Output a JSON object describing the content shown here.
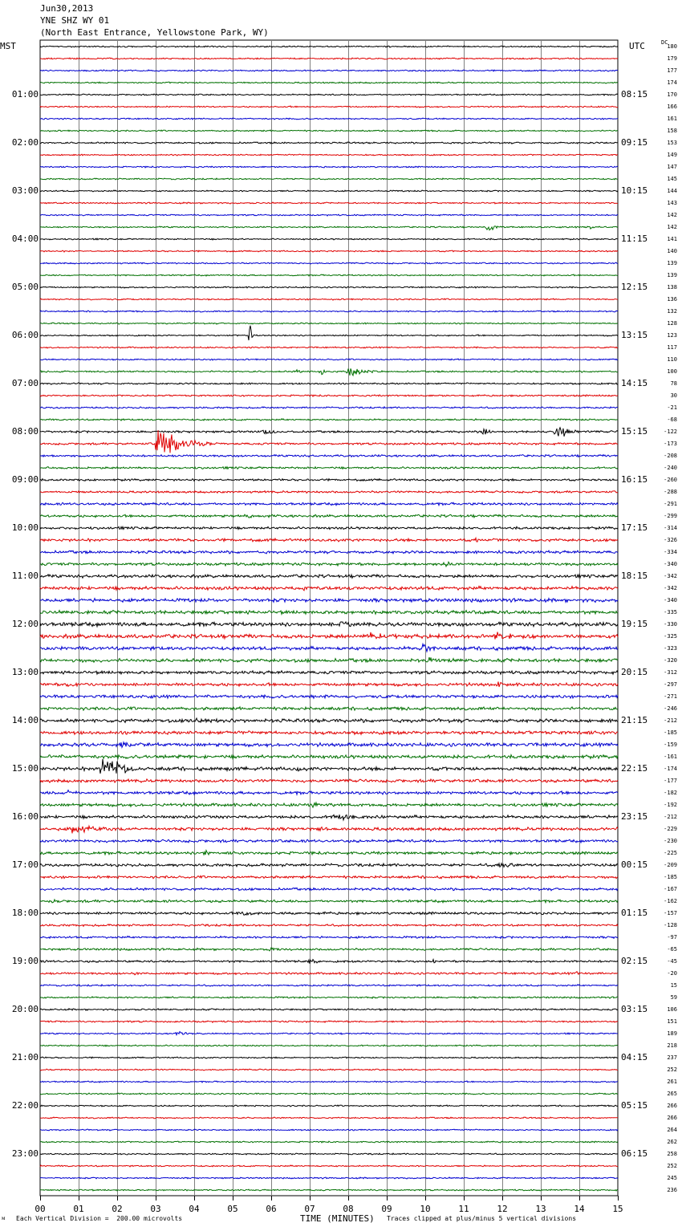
{
  "header": {
    "date": "Jun30,2013",
    "station": "YNE SHZ WY 01",
    "location": "(North East Entrance, Yellowstone Park, WY)"
  },
  "left_label": "MST",
  "right_label": "UTC",
  "dc_label": "DC",
  "footer": {
    "scale": "Each Vertical Division =  200.00 microvolts",
    "xlabel": "TIME (MINUTES)",
    "clip_note": "Traces clipped at plus/minus 5 vertical divisions"
  },
  "colors": {
    "trace": [
      "#000000",
      "#e00000",
      "#0000d0",
      "#007000"
    ],
    "grid": "#808080"
  },
  "chart_data": {
    "type": "line",
    "title": "YNE SHZ WY 01",
    "xlabel": "TIME (MINUTES)",
    "xlim": [
      0,
      15
    ],
    "x_ticks": [
      "00",
      "01",
      "02",
      "03",
      "04",
      "05",
      "06",
      "07",
      "08",
      "09",
      "10",
      "11",
      "12",
      "13",
      "14",
      "15"
    ],
    "traces_per_hour": 4,
    "trace_minutes": 15,
    "mst_hour_labels": [
      "",
      "01:00",
      "02:00",
      "03:00",
      "04:00",
      "05:00",
      "06:00",
      "07:00",
      "08:00",
      "09:00",
      "10:00",
      "11:00",
      "12:00",
      "13:00",
      "14:00",
      "15:00",
      "16:00",
      "17:00",
      "18:00",
      "19:00",
      "20:00",
      "21:00",
      "22:00",
      "23:00"
    ],
    "utc_hour_labels": [
      "",
      "08:15",
      "09:15",
      "10:15",
      "11:15",
      "12:15",
      "13:15",
      "14:15",
      "15:15",
      "16:15",
      "17:15",
      "18:15",
      "19:15",
      "20:15",
      "21:15",
      "22:15",
      "23:15",
      "00:15",
      "01:15",
      "02:15",
      "03:15",
      "04:15",
      "05:15",
      "06:15"
    ],
    "dc_offsets": [
      180,
      179,
      177,
      174,
      170,
      166,
      161,
      158,
      153,
      149,
      147,
      145,
      144,
      143,
      142,
      142,
      141,
      140,
      139,
      139,
      138,
      136,
      132,
      128,
      123,
      117,
      110,
      100,
      78,
      30,
      -21,
      -68,
      -122,
      -173,
      -208,
      -240,
      -260,
      -288,
      -291,
      -299,
      -314,
      -326,
      -334,
      -340,
      -342,
      -342,
      -340,
      -335,
      -330,
      -325,
      -323,
      -320,
      -312,
      -297,
      -271,
      -246,
      -212,
      -185,
      -159,
      -161,
      -174,
      -177,
      -182,
      -192,
      -212,
      -229,
      -230,
      -225,
      -209,
      -185,
      -167,
      -162,
      -157,
      -128,
      -97,
      -65,
      -45,
      -20,
      15,
      59,
      106,
      151,
      189,
      218,
      237,
      252,
      261,
      265,
      266,
      266,
      264,
      262,
      258,
      252,
      245,
      236
    ],
    "noise_amplitude": [
      1,
      1,
      1,
      1,
      1,
      1,
      1,
      1,
      1.2,
      1,
      1,
      1,
      1,
      1,
      1,
      1,
      1,
      1,
      1,
      1,
      1,
      1,
      1,
      1,
      1,
      1,
      1,
      1.2,
      1.2,
      1.2,
      1.2,
      1.2,
      1.5,
      1.5,
      1.5,
      1.5,
      1.5,
      1.5,
      1.8,
      1.8,
      1.8,
      2,
      2,
      2,
      2.2,
      2.5,
      2.5,
      2.5,
      2.8,
      2.8,
      2.5,
      2.5,
      2.2,
      2.2,
      2.2,
      2.2,
      2.5,
      2.5,
      2.5,
      2.5,
      2.5,
      2.2,
      2.2,
      2.2,
      2.2,
      2.2,
      2,
      2,
      2,
      1.8,
      1.8,
      1.8,
      1.8,
      1.5,
      1.5,
      1.5,
      1.5,
      1.5,
      1.2,
      1.2,
      1.2,
      1.2,
      1,
      1,
      1,
      1,
      1,
      1,
      1,
      1,
      1,
      1,
      1,
      1,
      1,
      1
    ],
    "events": [
      {
        "trace": 15,
        "minute": 11.6,
        "amplitude": 10,
        "duration": 0.6
      },
      {
        "trace": 15,
        "minute": 14.2,
        "amplitude": 4,
        "duration": 0.5
      },
      {
        "trace": 24,
        "minute": 5.45,
        "amplitude": 24,
        "duration": 0.12
      },
      {
        "trace": 27,
        "minute": 6.7,
        "amplitude": 6,
        "duration": 0.2
      },
      {
        "trace": 27,
        "minute": 7.3,
        "amplitude": 8,
        "duration": 0.2
      },
      {
        "trace": 27,
        "minute": 8.0,
        "amplitude": 10,
        "duration": 1.0
      },
      {
        "trace": 32,
        "minute": 5.8,
        "amplitude": 6,
        "duration": 0.8
      },
      {
        "trace": 32,
        "minute": 11.5,
        "amplitude": 6,
        "duration": 0.6
      },
      {
        "trace": 32,
        "minute": 13.4,
        "amplitude": 12,
        "duration": 0.9
      },
      {
        "trace": 33,
        "minute": 3.05,
        "amplitude": 26,
        "duration": 1.6
      },
      {
        "trace": 39,
        "minute": 5.3,
        "amplitude": 4,
        "duration": 0.8
      },
      {
        "trace": 41,
        "minute": 11.3,
        "amplitude": 4,
        "duration": 0.6
      },
      {
        "trace": 42,
        "minute": 11.8,
        "amplitude": 4,
        "duration": 0.8
      },
      {
        "trace": 43,
        "minute": 10.5,
        "amplitude": 5,
        "duration": 0.7
      },
      {
        "trace": 45,
        "minute": 6.8,
        "amplitude": 5,
        "duration": 0.6
      },
      {
        "trace": 47,
        "minute": 11.2,
        "amplitude": 6,
        "duration": 0.3
      },
      {
        "trace": 48,
        "minute": 7.8,
        "amplitude": 6,
        "duration": 1.6
      },
      {
        "trace": 49,
        "minute": 8.5,
        "amplitude": 7,
        "duration": 1.8
      },
      {
        "trace": 49,
        "minute": 11.8,
        "amplitude": 8,
        "duration": 1.9
      },
      {
        "trace": 50,
        "minute": 9.9,
        "amplitude": 12,
        "duration": 0.6
      },
      {
        "trace": 51,
        "minute": 10.1,
        "amplitude": 5,
        "duration": 0.6
      },
      {
        "trace": 52,
        "minute": 8.4,
        "amplitude": 4,
        "duration": 0.5
      },
      {
        "trace": 53,
        "minute": 0.7,
        "amplitude": 5,
        "duration": 0.6
      },
      {
        "trace": 53,
        "minute": 11.9,
        "amplitude": 8,
        "duration": 0.2
      },
      {
        "trace": 54,
        "minute": 7.1,
        "amplitude": 5,
        "duration": 0.4
      },
      {
        "trace": 56,
        "minute": 3.9,
        "amplitude": 6,
        "duration": 1.5
      },
      {
        "trace": 58,
        "minute": 0.9,
        "amplitude": 5,
        "duration": 1.0
      },
      {
        "trace": 58,
        "minute": 2.1,
        "amplitude": 7,
        "duration": 1.0
      },
      {
        "trace": 59,
        "minute": 3.5,
        "amplitude": 4,
        "duration": 0.8
      },
      {
        "trace": 60,
        "minute": 1.6,
        "amplitude": 24,
        "duration": 1.4
      },
      {
        "trace": 60,
        "minute": 4.8,
        "amplitude": 6,
        "duration": 0.3
      },
      {
        "trace": 60,
        "minute": 6.7,
        "amplitude": 6,
        "duration": 0.2
      },
      {
        "trace": 62,
        "minute": 0.7,
        "amplitude": 5,
        "duration": 0.4
      },
      {
        "trace": 63,
        "minute": 7.0,
        "amplitude": 4,
        "duration": 1.8
      },
      {
        "trace": 64,
        "minute": 3.5,
        "amplitude": 4,
        "duration": 1.0
      },
      {
        "trace": 64,
        "minute": 7.6,
        "amplitude": 6,
        "duration": 2.0
      },
      {
        "trace": 65,
        "minute": 0.8,
        "amplitude": 8,
        "duration": 2.2
      },
      {
        "trace": 65,
        "minute": 7.3,
        "amplitude": 5,
        "duration": 0.4
      },
      {
        "trace": 67,
        "minute": 4.3,
        "amplitude": 6,
        "duration": 0.4
      },
      {
        "trace": 68,
        "minute": 11.9,
        "amplitude": 4,
        "duration": 2.6
      },
      {
        "trace": 71,
        "minute": 0.3,
        "amplitude": 6,
        "duration": 0.3
      },
      {
        "trace": 72,
        "minute": 5.2,
        "amplitude": 4,
        "duration": 1.6
      },
      {
        "trace": 75,
        "minute": 6.0,
        "amplitude": 4,
        "duration": 0.6
      },
      {
        "trace": 76,
        "minute": 7.0,
        "amplitude": 5,
        "duration": 0.6
      },
      {
        "trace": 76,
        "minute": 10.2,
        "amplitude": 4,
        "duration": 0.3
      },
      {
        "trace": 77,
        "minute": 2.4,
        "amplitude": 4,
        "duration": 0.6
      },
      {
        "trace": 77,
        "minute": 13.9,
        "amplitude": 4,
        "duration": 0.4
      },
      {
        "trace": 82,
        "minute": 3.55,
        "amplitude": 6,
        "duration": 0.5
      }
    ]
  }
}
